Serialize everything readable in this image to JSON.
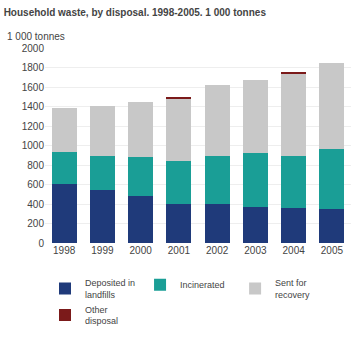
{
  "chart_data": {
    "type": "bar",
    "title": "Household waste, by disposal. 1998-2005. 1 000 tonnes",
    "ylabel": "1 000 tonnes",
    "categories": [
      "1998",
      "1999",
      "2000",
      "2001",
      "2002",
      "2003",
      "2004",
      "2005"
    ],
    "series": [
      {
        "name": "Deposited in\nlandfills",
        "color": "#1f3a7a",
        "values": [
          610,
          545,
          480,
          395,
          400,
          370,
          360,
          345
        ]
      },
      {
        "name": "Incinerated",
        "color": "#1a9e96",
        "values": [
          320,
          350,
          400,
          445,
          490,
          550,
          535,
          615
        ]
      },
      {
        "name": "Sent for\nrecovery",
        "color": "#c8c8c8",
        "values": [
          450,
          510,
          570,
          640,
          730,
          750,
          840,
          885
        ]
      },
      {
        "name": "Other\ndisposal",
        "color": "#7b1a1a",
        "values": [
          0,
          0,
          0,
          20,
          0,
          0,
          15,
          0
        ]
      }
    ],
    "stacked": true,
    "ylim": [
      0,
      2000
    ],
    "yticks": [
      0,
      200,
      400,
      600,
      800,
      1000,
      1200,
      1400,
      1600,
      1800,
      2000
    ],
    "grid": true,
    "legend": "bottom"
  }
}
